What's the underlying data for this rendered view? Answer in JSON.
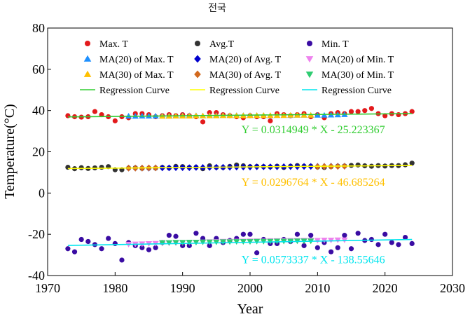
{
  "chart_data": {
    "type": "scatter",
    "title": "전국",
    "xlabel": "Year",
    "ylabel": "Temperature(°C)",
    "xlim": [
      1970,
      2030
    ],
    "ylim": [
      -40,
      80
    ],
    "xticks": [
      1970,
      1980,
      1990,
      2000,
      2010,
      2020,
      2030
    ],
    "yticks": [
      -40,
      -20,
      0,
      20,
      40,
      60,
      80
    ],
    "grid": false,
    "legend_position": "top",
    "series": [
      {
        "name": "Max. T",
        "kind": "points",
        "marker": "circle",
        "color": "#e31a1c",
        "x": [
          1973,
          1974,
          1975,
          1976,
          1977,
          1978,
          1979,
          1980,
          1981,
          1982,
          1983,
          1984,
          1985,
          1986,
          1987,
          1988,
          1989,
          1990,
          1991,
          1992,
          1993,
          1994,
          1995,
          1996,
          1997,
          1998,
          1999,
          2000,
          2001,
          2002,
          2003,
          2004,
          2005,
          2006,
          2007,
          2008,
          2009,
          2010,
          2011,
          2012,
          2013,
          2014,
          2015,
          2016,
          2017,
          2018,
          2019,
          2020,
          2021,
          2022,
          2023,
          2024
        ],
        "y": [
          37.5,
          37.0,
          36.8,
          37.0,
          39.5,
          38.0,
          37.0,
          35.0,
          37.0,
          36.5,
          38.5,
          38.5,
          38.0,
          37.0,
          37.5,
          38.0,
          37.5,
          38.0,
          37.5,
          37.0,
          34.5,
          39.0,
          39.0,
          38.0,
          37.5,
          37.0,
          36.5,
          37.5,
          37.0,
          37.0,
          35.0,
          38.5,
          38.0,
          37.5,
          38.0,
          38.5,
          37.0,
          38.0,
          36.5,
          38.5,
          39.0,
          38.5,
          39.5,
          39.5,
          40.0,
          41.0,
          38.5,
          37.5,
          38.5,
          38.0,
          38.5,
          39.5
        ]
      },
      {
        "name": "Avg.T",
        "kind": "points",
        "marker": "circle",
        "color": "#333333",
        "x": [
          1973,
          1974,
          1975,
          1976,
          1977,
          1978,
          1979,
          1980,
          1981,
          1982,
          1983,
          1984,
          1985,
          1986,
          1987,
          1988,
          1989,
          1990,
          1991,
          1992,
          1993,
          1994,
          1995,
          1996,
          1997,
          1998,
          1999,
          2000,
          2001,
          2002,
          2003,
          2004,
          2005,
          2006,
          2007,
          2008,
          2009,
          2010,
          2011,
          2012,
          2013,
          2014,
          2015,
          2016,
          2017,
          2018,
          2019,
          2020,
          2021,
          2022,
          2023,
          2024
        ],
        "y": [
          12.5,
          11.8,
          12.3,
          11.9,
          12.2,
          12.5,
          12.8,
          11.3,
          11.3,
          12.1,
          12.2,
          12.0,
          12.1,
          12.1,
          12.4,
          12.2,
          12.9,
          12.8,
          12.4,
          12.5,
          11.8,
          13.2,
          12.5,
          12.4,
          12.9,
          13.6,
          13.2,
          12.8,
          12.9,
          12.8,
          12.7,
          13.0,
          12.4,
          13.0,
          13.3,
          13.0,
          13.0,
          12.6,
          12.4,
          12.8,
          13.0,
          13.1,
          13.4,
          13.6,
          13.2,
          13.0,
          13.3,
          13.1,
          13.3,
          13.3,
          13.7,
          14.5
        ]
      },
      {
        "name": "Min. T",
        "kind": "points",
        "marker": "circle",
        "color": "#3a0ca3",
        "x": [
          1973,
          1974,
          1975,
          1976,
          1977,
          1978,
          1979,
          1980,
          1981,
          1982,
          1983,
          1984,
          1985,
          1986,
          1987,
          1988,
          1989,
          1990,
          1991,
          1992,
          1993,
          1994,
          1995,
          1996,
          1997,
          1998,
          1999,
          2000,
          2001,
          2002,
          2003,
          2004,
          2005,
          2006,
          2007,
          2008,
          2009,
          2010,
          2011,
          2012,
          2013,
          2014,
          2015,
          2016,
          2017,
          2018,
          2019,
          2020,
          2021,
          2022,
          2023,
          2024
        ],
        "y": [
          -27,
          -28.5,
          -22.5,
          -23.5,
          -25,
          -27,
          -22,
          -24.5,
          -32.5,
          -24,
          -25.5,
          -26.5,
          -27.5,
          -26.5,
          -24,
          -20.5,
          -21,
          -25.5,
          -25.5,
          -19.5,
          -22,
          -25.5,
          -22,
          -24,
          -23,
          -22,
          -20,
          -20,
          -29,
          -22.5,
          -24.5,
          -24.5,
          -22.5,
          -23.5,
          -20,
          -25.5,
          -20.5,
          -26.5,
          -24,
          -28.5,
          -26.5,
          -20.5,
          -27,
          -19.5,
          -23,
          -22.5,
          -25,
          -20,
          -24,
          -25,
          -21.5,
          -24.5
        ]
      },
      {
        "name": "MA(20) of Max. T",
        "kind": "points",
        "marker": "triangle-up",
        "color": "#1e90ff",
        "x": [
          1982,
          1983,
          1984,
          1985,
          1986,
          1987,
          1988,
          1989,
          1990,
          1991,
          1992,
          1993,
          1994,
          1995,
          1996,
          1997,
          1998,
          1999,
          2000,
          2001,
          2002,
          2003,
          2004,
          2005,
          2006,
          2007,
          2008,
          2009,
          2010,
          2011,
          2012,
          2013,
          2014
        ],
        "y": [
          37.3,
          37.2,
          37.3,
          37.3,
          37.3,
          37.4,
          37.4,
          37.4,
          37.5,
          37.5,
          37.5,
          37.4,
          37.5,
          37.6,
          37.6,
          37.6,
          37.6,
          37.6,
          37.6,
          37.6,
          37.6,
          37.5,
          37.6,
          37.6,
          37.6,
          37.7,
          37.7,
          37.7,
          37.7,
          37.7,
          37.8,
          37.9,
          38.0
        ]
      },
      {
        "name": "MA(20) of Avg. T",
        "kind": "points",
        "marker": "diamond",
        "color": "#0000cd",
        "x": [
          1982,
          1983,
          1984,
          1985,
          1986,
          1987,
          1988,
          1989,
          1990,
          1991,
          1992,
          1993,
          1994,
          1995,
          1996,
          1997,
          1998,
          1999,
          2000,
          2001,
          2002,
          2003,
          2004,
          2005,
          2006,
          2007,
          2008,
          2009,
          2010,
          2011,
          2012,
          2013,
          2014
        ],
        "y": [
          12.1,
          12.1,
          12.1,
          12.1,
          12.2,
          12.2,
          12.2,
          12.3,
          12.3,
          12.3,
          12.4,
          12.4,
          12.4,
          12.5,
          12.5,
          12.5,
          12.6,
          12.6,
          12.6,
          12.7,
          12.7,
          12.7,
          12.7,
          12.8,
          12.8,
          12.8,
          12.9,
          12.9,
          12.9,
          12.9,
          13.0,
          13.0,
          13.0
        ]
      },
      {
        "name": "MA(20) of Min. T",
        "kind": "points",
        "marker": "triangle-down",
        "color": "#ee82ee",
        "x": [
          1982,
          1983,
          1984,
          1985,
          1986,
          1987,
          1988,
          1989,
          1990,
          1991,
          1992,
          1993,
          1994,
          1995,
          1996,
          1997,
          1998,
          1999,
          2000,
          2001,
          2002,
          2003,
          2004,
          2005,
          2006,
          2007,
          2008,
          2009,
          2010,
          2011,
          2012,
          2013,
          2014
        ],
        "y": [
          -24.8,
          -24.7,
          -24.6,
          -24.5,
          -24.4,
          -24.3,
          -24.2,
          -24.1,
          -24.0,
          -23.9,
          -23.8,
          -23.7,
          -23.6,
          -23.5,
          -23.4,
          -23.4,
          -23.3,
          -23.3,
          -23.2,
          -23.2,
          -23.2,
          -23.1,
          -23.1,
          -23.0,
          -23.0,
          -23.0,
          -22.9,
          -22.9,
          -22.9,
          -22.8,
          -22.8,
          -22.7,
          -22.7
        ]
      },
      {
        "name": "MA(30) of Max. T",
        "kind": "points",
        "marker": "triangle-up",
        "color": "#ffc000",
        "x": [
          1987,
          1988,
          1989,
          1990,
          1991,
          1992,
          1993,
          1994,
          1995,
          1996,
          1997,
          1998,
          1999,
          2000,
          2001,
          2002,
          2003,
          2004,
          2005,
          2006,
          2007,
          2008,
          2009
        ],
        "y": [
          37.2,
          37.2,
          37.3,
          37.3,
          37.3,
          37.4,
          37.4,
          37.4,
          37.4,
          37.5,
          37.5,
          37.5,
          37.5,
          37.5,
          37.6,
          37.6,
          37.6,
          37.6,
          37.6,
          37.7,
          37.7,
          37.7,
          37.7
        ]
      },
      {
        "name": "MA(30) of Avg. T",
        "kind": "points",
        "marker": "diamond",
        "color": "#d2691e",
        "x": [
          1982,
          1983,
          1984,
          1985,
          1986,
          2010,
          2011,
          2012,
          2013,
          2014
        ],
        "y": [
          12.1,
          12.1,
          12.1,
          12.2,
          12.2,
          12.8,
          12.9,
          12.9,
          12.9,
          13.0
        ]
      },
      {
        "name": "MA(30) of Min. T",
        "kind": "points",
        "marker": "triangle-down",
        "color": "#2ecc71",
        "x": [
          1987,
          1988,
          1989,
          1990,
          1991,
          1992,
          1993,
          1994,
          1995,
          1996,
          1997,
          1998,
          1999,
          2000,
          2001,
          2002,
          2003,
          2004,
          2005,
          2006,
          2007,
          2008,
          2009
        ],
        "y": [
          -24.0,
          -24.0,
          -23.9,
          -23.9,
          -23.8,
          -23.8,
          -23.7,
          -23.7,
          -23.7,
          -23.6,
          -23.6,
          -23.5,
          -23.5,
          -23.5,
          -23.4,
          -23.4,
          -23.4,
          -23.3,
          -23.3,
          -23.3,
          -23.2,
          -23.2,
          -23.2
        ]
      },
      {
        "name": "Regression Curve",
        "kind": "line",
        "color": "#32cd32",
        "x": [
          1973,
          2024
        ],
        "y": [
          36.92,
          38.53
        ]
      },
      {
        "name": "Regression Curve",
        "kind": "line",
        "color": "#ffff00",
        "x": [
          1973,
          2024
        ],
        "y": [
          11.87,
          13.38
        ]
      },
      {
        "name": "Regression Curve",
        "kind": "line",
        "color": "#00e5ee",
        "x": [
          1973,
          2024
        ],
        "y": [
          -25.42,
          -22.5
        ]
      }
    ],
    "annotations": [
      {
        "text": "Y = 0.0314949 * X - 25.223367",
        "color": "#32cd32",
        "x": 2020,
        "y": 29
      },
      {
        "text": "Y = 0.0296764 * X - 46.685264",
        "color": "#ffc000",
        "x": 2020,
        "y": 3.5
      },
      {
        "text": "Y = 0.0573337 * X - 138.55646",
        "color": "#00e5ee",
        "x": 2020,
        "y": -34
      }
    ]
  }
}
